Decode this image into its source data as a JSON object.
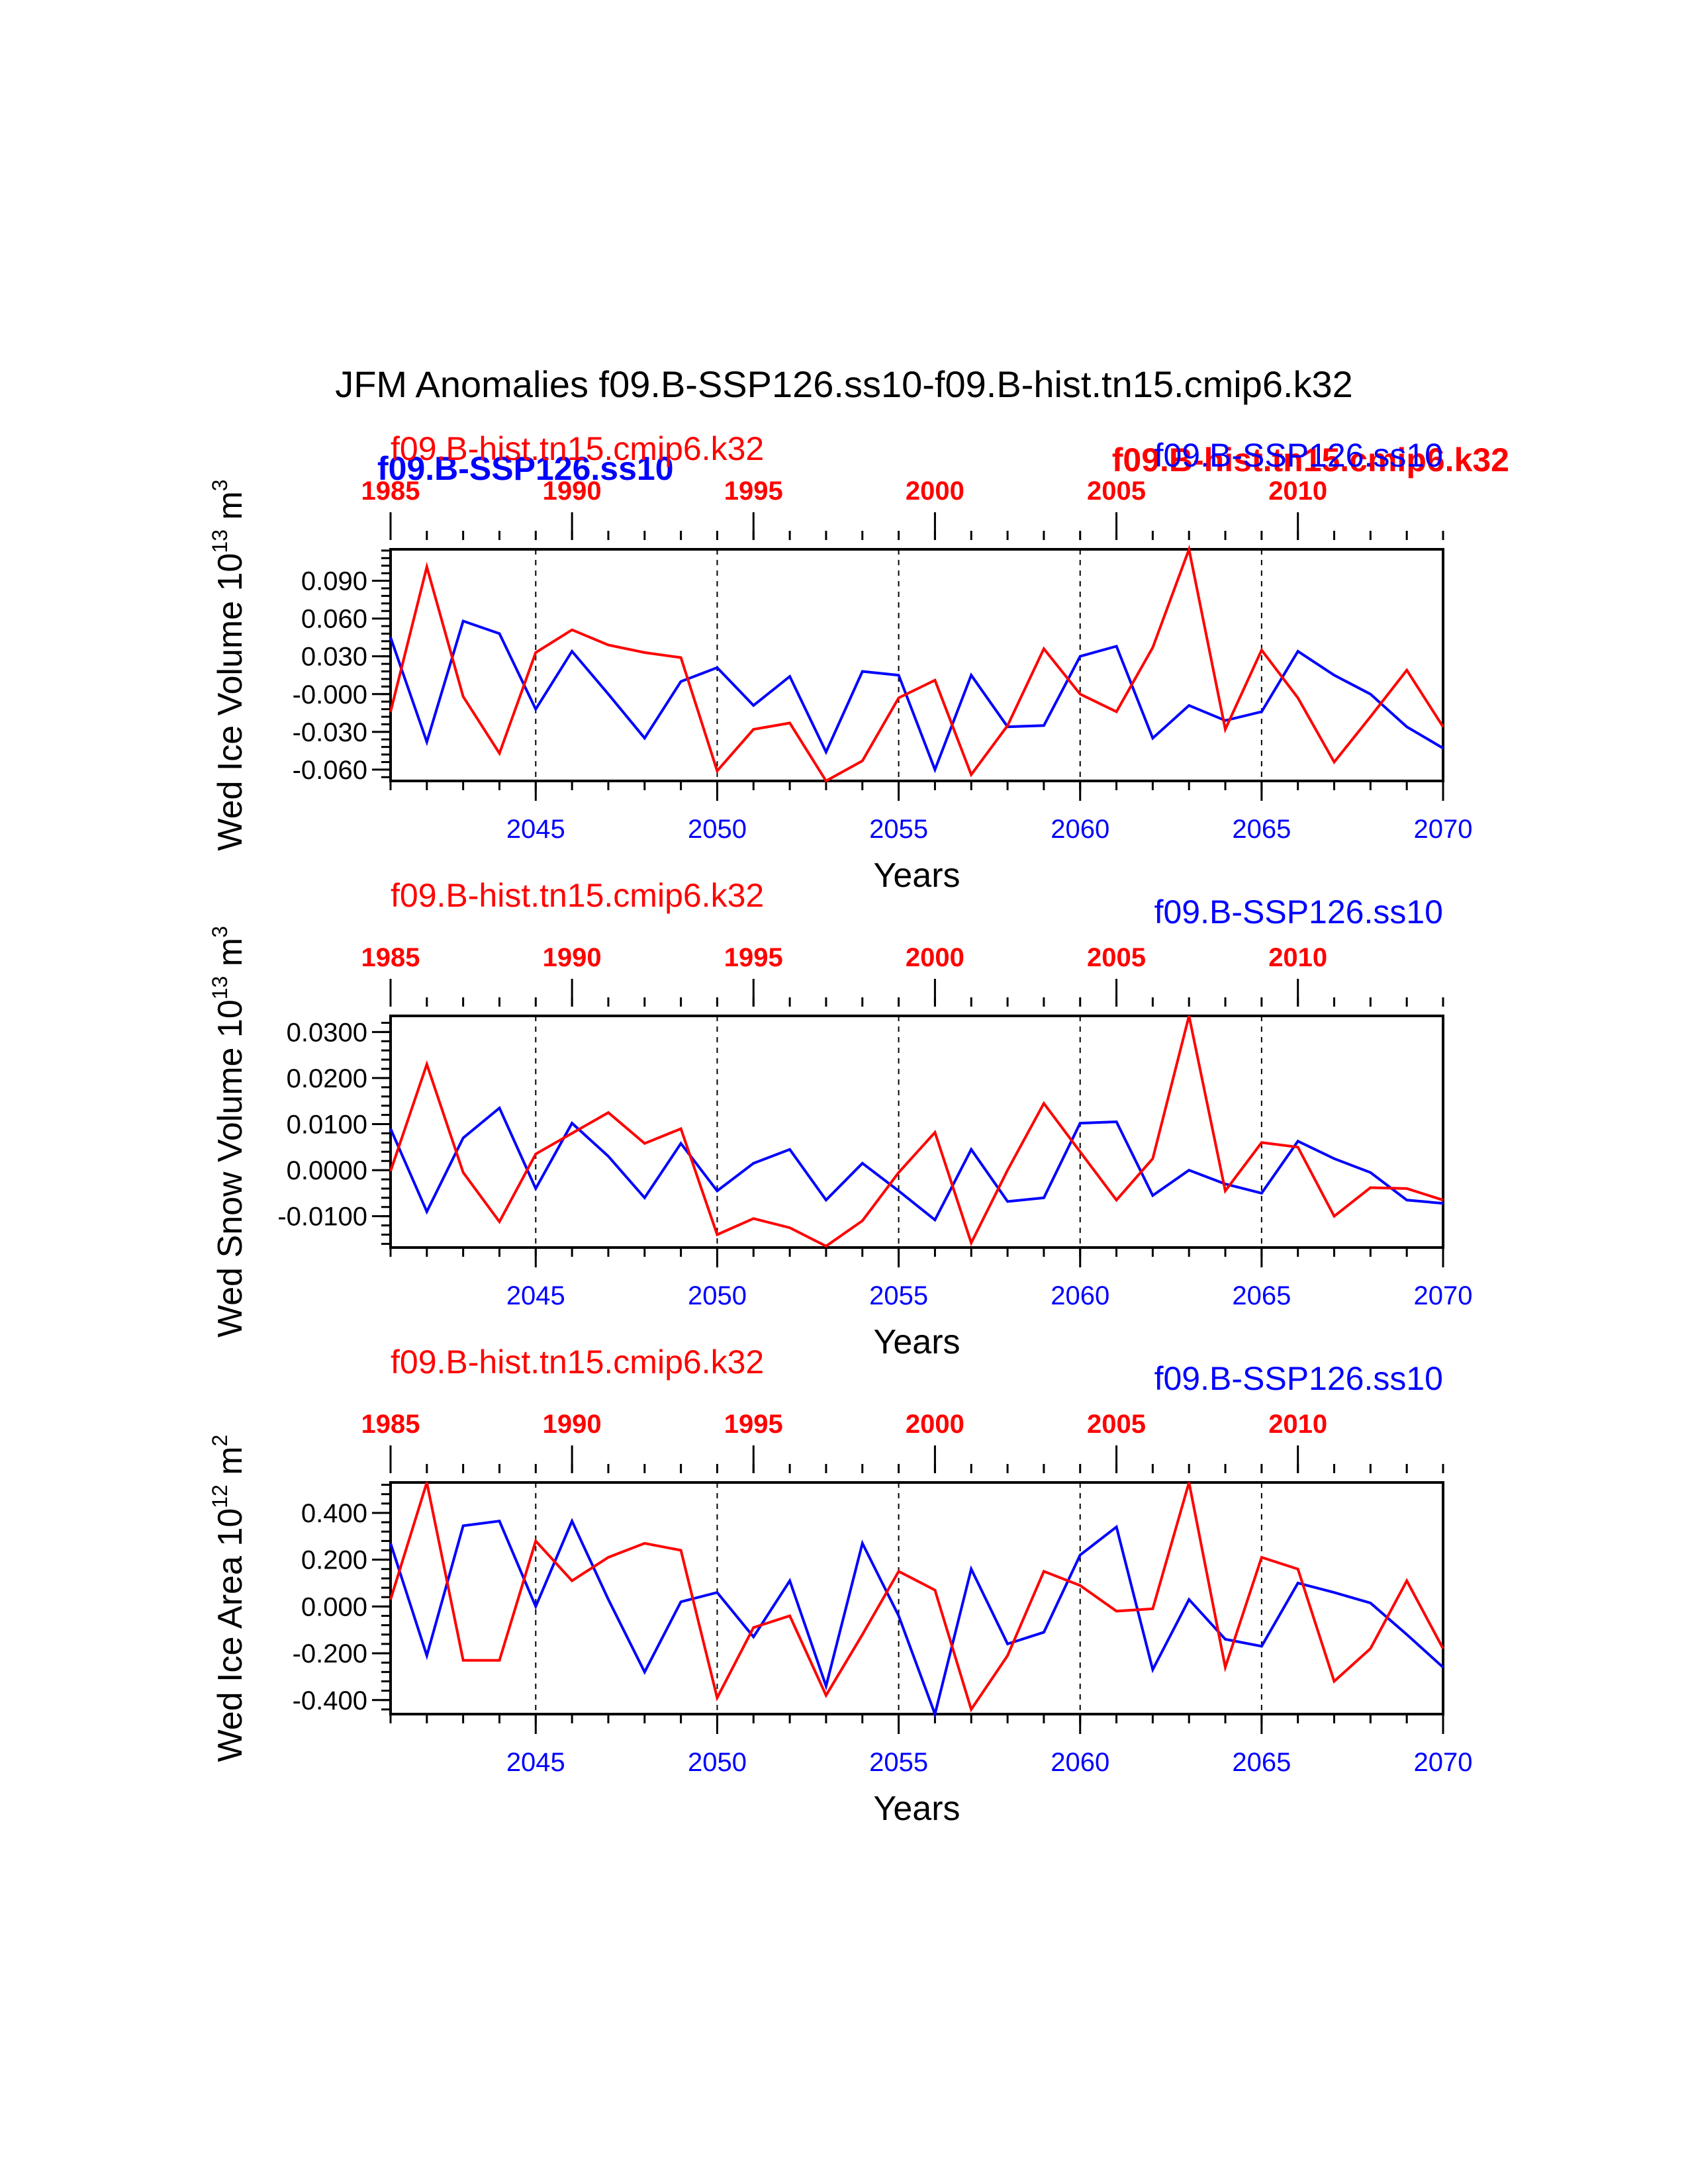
{
  "title": "JFM Anomalies f09.B-SSP126.ss10-f09.B-hist.tn15.cmip6.k32",
  "colors": {
    "ssp_series": "#0000ff",
    "hist_series": "#ff0000",
    "axis": "#000000",
    "background": "#ffffff"
  },
  "overlap_labels": {
    "blue_left": "f09.B-SSP126.ss10",
    "red_right": "f09.B-hist.tn15.cmip6.k32"
  },
  "chart_data": [
    {
      "type": "line",
      "ylabel": "Wed Ice Volume 10",
      "ylabel_exp": "13",
      "ylabel_unit": " m",
      "ylabel_unit_exp": "3",
      "xlabel": "Years",
      "top_left_label": "f09.B-hist.tn15.cmip6.k32",
      "top_right_label": "f09.B-SSP126.ss10",
      "xlim": [
        2041,
        2070
      ],
      "x_ticks": [
        2045,
        2050,
        2055,
        2060,
        2065,
        2070
      ],
      "top_xlim": [
        1985,
        2014
      ],
      "top_ticks": [
        1985,
        1990,
        1995,
        2000,
        2005,
        2010
      ],
      "ylim": [
        -0.069,
        0.115
      ],
      "y_ticks": [
        0.09,
        0.06,
        0.03,
        0.0,
        -0.03,
        -0.06
      ],
      "y_tick_labels": [
        "0.090",
        "0.060",
        "0.030",
        "-0.000",
        "-0.030",
        "-0.060"
      ],
      "dashed_vlines_x": [
        2045,
        2050,
        2055,
        2060,
        2065
      ],
      "series": [
        {
          "name": "f09.B-SSP126.ss10",
          "color": "#0000ff",
          "values": [
            0.045,
            -0.038,
            0.058,
            0.048,
            -0.012,
            0.034,
            0.0,
            -0.035,
            0.01,
            0.021,
            -0.009,
            0.014,
            -0.046,
            0.018,
            0.015,
            -0.06,
            0.015,
            -0.026,
            -0.025,
            0.03,
            0.038,
            -0.035,
            -0.009,
            -0.021,
            -0.014,
            0.034,
            0.015,
            0.0,
            -0.026,
            -0.043
          ]
        },
        {
          "name": "f09.B-hist.tn15.cmip6.k32",
          "color": "#ff0000",
          "values": [
            -0.014,
            0.101,
            -0.002,
            -0.047,
            0.033,
            0.051,
            0.039,
            0.033,
            0.029,
            -0.061,
            -0.028,
            -0.023,
            -0.069,
            -0.053,
            -0.003,
            0.011,
            -0.064,
            -0.025,
            0.036,
            0.0,
            -0.014,
            0.037,
            0.115,
            -0.028,
            0.035,
            -0.003,
            -0.054,
            -0.018,
            0.019,
            -0.026
          ]
        }
      ]
    },
    {
      "type": "line",
      "ylabel": "Wed Snow Volume 10",
      "ylabel_exp": "13",
      "ylabel_unit": " m",
      "ylabel_unit_exp": "3",
      "xlabel": "Years",
      "top_left_label": "f09.B-hist.tn15.cmip6.k32",
      "top_right_label": "f09.B-SSP126.ss10",
      "xlim": [
        2041,
        2070
      ],
      "x_ticks": [
        2045,
        2050,
        2055,
        2060,
        2065,
        2070
      ],
      "top_xlim": [
        1985,
        2014
      ],
      "top_ticks": [
        1985,
        1990,
        1995,
        2000,
        2005,
        2010
      ],
      "ylim": [
        -0.0168,
        0.0335
      ],
      "y_ticks": [
        0.03,
        0.02,
        0.01,
        0.0,
        -0.01
      ],
      "y_tick_labels": [
        "0.0300",
        "0.0200",
        "0.0100",
        "0.0000",
        "-0.0100"
      ],
      "dashed_vlines_x": [
        2045,
        2050,
        2055,
        2060,
        2065
      ],
      "series": [
        {
          "name": "f09.B-SSP126.ss10",
          "color": "#0000ff",
          "values": [
            0.009,
            -0.009,
            0.007,
            0.0135,
            -0.004,
            0.0102,
            0.003,
            -0.006,
            0.0058,
            -0.0045,
            0.0015,
            0.0045,
            -0.0065,
            0.0015,
            -0.0045,
            -0.0108,
            0.0045,
            -0.0068,
            -0.006,
            0.0102,
            0.0105,
            -0.0055,
            0.0,
            -0.003,
            -0.005,
            0.0063,
            0.0025,
            -0.0005,
            -0.0065,
            -0.0072
          ]
        },
        {
          "name": "f09.B-hist.tn15.cmip6.k32",
          "color": "#ff0000",
          "values": [
            -0.0002,
            0.023,
            -0.0005,
            -0.0112,
            0.0035,
            0.008,
            0.0125,
            0.0058,
            0.009,
            -0.014,
            -0.0105,
            -0.0125,
            -0.0165,
            -0.011,
            -0.0005,
            0.0082,
            -0.0158,
            0.0,
            0.0145,
            0.004,
            -0.0065,
            0.0025,
            0.0335,
            -0.0045,
            0.006,
            0.005,
            -0.01,
            -0.0038,
            -0.004,
            -0.0065
          ]
        }
      ]
    },
    {
      "type": "line",
      "ylabel": "Wed Ice Area 10",
      "ylabel_exp": "12",
      "ylabel_unit": " m",
      "ylabel_unit_exp": "2",
      "xlabel": "Years",
      "top_left_label": "f09.B-hist.tn15.cmip6.k32",
      "top_right_label": "f09.B-SSP126.ss10",
      "xlim": [
        2041,
        2070
      ],
      "x_ticks": [
        2045,
        2050,
        2055,
        2060,
        2065,
        2070
      ],
      "top_xlim": [
        1985,
        2014
      ],
      "top_ticks": [
        1985,
        1990,
        1995,
        2000,
        2005,
        2010
      ],
      "ylim": [
        -0.46,
        0.53
      ],
      "y_ticks": [
        0.4,
        0.2,
        0.0,
        -0.2,
        -0.4
      ],
      "y_tick_labels": [
        "0.400",
        "0.200",
        "0.000",
        "-0.200",
        "-0.400"
      ],
      "dashed_vlines_x": [
        2045,
        2050,
        2055,
        2060,
        2065
      ],
      "series": [
        {
          "name": "f09.B-SSP126.ss10",
          "color": "#0000ff",
          "values": [
            0.27,
            -0.21,
            0.345,
            0.365,
            0.0,
            0.365,
            0.03,
            -0.28,
            0.02,
            0.06,
            -0.13,
            0.11,
            -0.34,
            0.27,
            -0.04,
            -0.46,
            0.16,
            -0.16,
            -0.11,
            0.22,
            0.34,
            -0.27,
            0.03,
            -0.14,
            -0.17,
            0.1,
            0.06,
            0.015,
            -0.12,
            -0.26
          ]
        },
        {
          "name": "f09.B-hist.tn15.cmip6.k32",
          "color": "#ff0000",
          "values": [
            0.03,
            0.53,
            -0.23,
            -0.23,
            0.28,
            0.11,
            0.21,
            0.27,
            0.24,
            -0.39,
            -0.09,
            -0.04,
            -0.38,
            -0.12,
            0.15,
            0.07,
            -0.44,
            -0.21,
            0.15,
            0.09,
            -0.02,
            -0.01,
            0.53,
            -0.26,
            0.21,
            0.16,
            -0.32,
            -0.18,
            0.11,
            -0.18
          ]
        }
      ]
    }
  ]
}
